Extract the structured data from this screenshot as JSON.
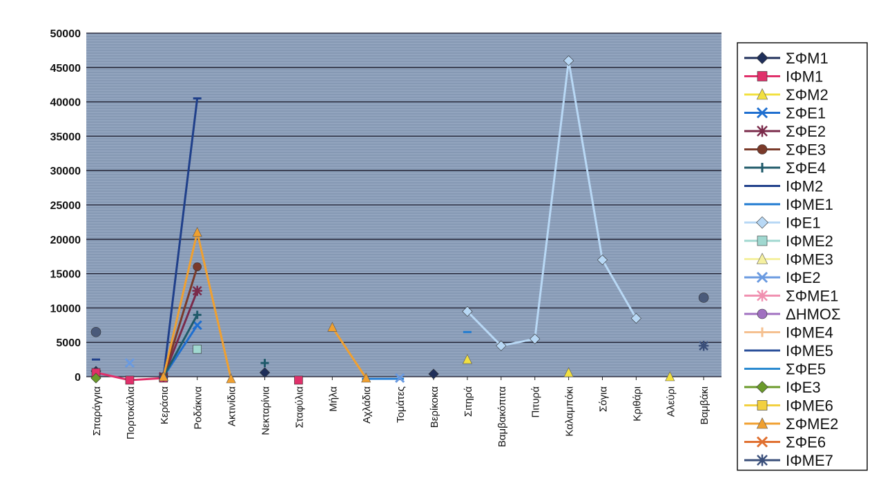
{
  "chart_data": {
    "type": "line",
    "title": "",
    "xlabel": "",
    "ylabel": "",
    "ylim": [
      0,
      50000
    ],
    "yticks": [
      0,
      5000,
      10000,
      15000,
      20000,
      25000,
      30000,
      35000,
      40000,
      45000,
      50000
    ],
    "grid": true,
    "legend_position": "right",
    "categories": [
      "Σπαράγγια",
      "Πορτοκάλια",
      "Κεράσια",
      "Ροδάκινα",
      "Ακτινίδια",
      "Νεκταρίνια",
      "Σταφύλια",
      "Μήλα",
      "Αχλάδια",
      "Τομάτες",
      "Βερίκοκα",
      "Σιτηρά",
      "Βαμβακόπιτα",
      "Πιτυρά",
      "Καλαμπόκι",
      "Σόγια",
      "Κριθάρι",
      "Αλεύρι",
      "Βαμβάκι"
    ],
    "series": [
      {
        "name": "ΣΦΜ1",
        "color": "#1f2f5a",
        "marker": "diamond",
        "values": [
          800,
          null,
          null,
          null,
          null,
          600,
          null,
          null,
          null,
          null,
          400,
          null,
          null,
          null,
          null,
          null,
          null,
          null,
          null
        ]
      },
      {
        "name": "ΙΦΜ1",
        "color": "#e0306a",
        "marker": "square",
        "values": [
          600,
          -500,
          -200,
          null,
          null,
          null,
          -500,
          null,
          null,
          null,
          null,
          null,
          null,
          null,
          null,
          null,
          null,
          null,
          null
        ]
      },
      {
        "name": "ΣΦΜ2",
        "color": "#f2e040",
        "marker": "triangle",
        "values": [
          null,
          null,
          null,
          null,
          null,
          null,
          null,
          null,
          null,
          null,
          null,
          2500,
          null,
          null,
          600,
          null,
          null,
          0,
          null
        ]
      },
      {
        "name": "ΣΦΕ1",
        "color": "#1f6fd0",
        "marker": "x",
        "values": [
          null,
          null,
          0,
          7500,
          null,
          null,
          null,
          null,
          null,
          null,
          null,
          null,
          null,
          null,
          null,
          null,
          null,
          null,
          null
        ]
      },
      {
        "name": "ΣΦΕ2",
        "color": "#7a2a4a",
        "marker": "star",
        "values": [
          null,
          null,
          0,
          12500,
          null,
          null,
          null,
          null,
          null,
          null,
          null,
          null,
          null,
          null,
          null,
          null,
          null,
          null,
          null
        ]
      },
      {
        "name": "ΣΦΕ3",
        "color": "#7a3a2a",
        "marker": "circle",
        "values": [
          null,
          null,
          0,
          16000,
          null,
          null,
          null,
          null,
          null,
          null,
          null,
          null,
          null,
          null,
          null,
          null,
          null,
          null,
          null
        ]
      },
      {
        "name": "ΣΦΕ4",
        "color": "#1f5a6a",
        "marker": "plus",
        "values": [
          null,
          null,
          0,
          9000,
          null,
          2000,
          null,
          null,
          null,
          null,
          null,
          null,
          null,
          null,
          null,
          null,
          null,
          null,
          null
        ]
      },
      {
        "name": "ΙΦΜ2",
        "color": "#1f3f8a",
        "marker": "dash",
        "values": [
          2500,
          null,
          0,
          40500,
          null,
          null,
          null,
          null,
          null,
          null,
          null,
          null,
          null,
          null,
          null,
          null,
          null,
          null,
          null
        ]
      },
      {
        "name": "ΙΦΜΕ1",
        "color": "#1f7ad0",
        "marker": "dash",
        "values": [
          null,
          null,
          null,
          null,
          null,
          null,
          null,
          null,
          -300,
          -300,
          null,
          6500,
          null,
          null,
          null,
          null,
          null,
          null,
          null
        ]
      },
      {
        "name": "ΙΦΕ1",
        "color": "#b8d8f5",
        "marker": "diamond",
        "values": [
          null,
          null,
          null,
          null,
          null,
          null,
          null,
          null,
          null,
          null,
          null,
          9500,
          4500,
          5500,
          46000,
          17000,
          8500,
          null,
          null
        ]
      },
      {
        "name": "ΙΦΜΕ2",
        "color": "#a0d8d0",
        "marker": "square",
        "values": [
          null,
          null,
          null,
          4000,
          null,
          null,
          null,
          null,
          null,
          null,
          null,
          null,
          null,
          null,
          null,
          null,
          null,
          null,
          null
        ]
      },
      {
        "name": "ΙΦΜΕ3",
        "color": "#f5f0a0",
        "marker": "triangle",
        "values": [
          null,
          null,
          null,
          null,
          null,
          null,
          null,
          null,
          null,
          null,
          null,
          null,
          null,
          null,
          null,
          null,
          null,
          null,
          null
        ]
      },
      {
        "name": "ΙΦΕ2",
        "color": "#6a9ae0",
        "marker": "x",
        "values": [
          null,
          2000,
          null,
          null,
          null,
          null,
          null,
          null,
          null,
          -200,
          null,
          null,
          null,
          null,
          null,
          null,
          null,
          null,
          null
        ]
      },
      {
        "name": "ΣΦΜΕ1",
        "color": "#f090b0",
        "marker": "star",
        "values": [
          null,
          null,
          null,
          null,
          null,
          null,
          null,
          null,
          null,
          null,
          null,
          null,
          null,
          null,
          null,
          null,
          null,
          null,
          null
        ]
      },
      {
        "name": "ΔΗΜΟΣ",
        "color": "#a070c0",
        "marker": "circle",
        "values": [
          null,
          null,
          null,
          null,
          null,
          null,
          null,
          null,
          null,
          null,
          null,
          null,
          null,
          null,
          null,
          null,
          null,
          null,
          null
        ]
      },
      {
        "name": "ΙΦΜΕ4",
        "color": "#f5c090",
        "marker": "plus",
        "values": [
          null,
          null,
          null,
          null,
          null,
          null,
          null,
          null,
          null,
          null,
          null,
          null,
          null,
          null,
          null,
          null,
          null,
          null,
          null
        ]
      },
      {
        "name": "ΙΦΜΕ5",
        "color": "#2a4f9a",
        "marker": "dash",
        "values": [
          null,
          null,
          null,
          null,
          null,
          null,
          null,
          null,
          null,
          null,
          null,
          null,
          null,
          null,
          null,
          null,
          null,
          null,
          null
        ]
      },
      {
        "name": "ΣΦΕ5",
        "color": "#2a8ad0",
        "marker": "dash",
        "values": [
          null,
          null,
          null,
          null,
          null,
          null,
          null,
          null,
          null,
          null,
          null,
          null,
          null,
          null,
          null,
          null,
          null,
          null,
          null
        ]
      },
      {
        "name": "ΙΦΕ3",
        "color": "#6a9a2a",
        "marker": "diamond",
        "values": [
          -200,
          null,
          null,
          null,
          null,
          null,
          null,
          null,
          null,
          null,
          null,
          null,
          null,
          null,
          null,
          null,
          null,
          null,
          null
        ]
      },
      {
        "name": "ΙΦΜΕ6",
        "color": "#f2d040",
        "marker": "square",
        "values": [
          null,
          null,
          null,
          null,
          null,
          null,
          null,
          null,
          null,
          null,
          null,
          null,
          null,
          null,
          null,
          null,
          null,
          null,
          null
        ]
      },
      {
        "name": "ΣΦΜΕ2",
        "color": "#f0a030",
        "marker": "triangle",
        "values": [
          null,
          null,
          0,
          21000,
          -300,
          null,
          null,
          7200,
          -200,
          null,
          null,
          null,
          null,
          null,
          null,
          null,
          null,
          null,
          null
        ]
      },
      {
        "name": "ΣΦΕ6",
        "color": "#e07030",
        "marker": "x",
        "values": [
          null,
          null,
          null,
          null,
          null,
          null,
          null,
          null,
          null,
          null,
          null,
          null,
          null,
          null,
          null,
          null,
          null,
          null,
          null
        ]
      },
      {
        "name": "ΙΦΜΕ7",
        "color": "#3a4f7a",
        "marker": "star",
        "values": [
          null,
          null,
          null,
          null,
          null,
          null,
          null,
          null,
          null,
          null,
          null,
          null,
          null,
          null,
          null,
          null,
          null,
          null,
          4500
        ]
      }
    ],
    "extra_points": [
      {
        "category": "Σπαράγγια",
        "value": 6500,
        "color": "#4a5a7a",
        "marker": "circle"
      },
      {
        "category": "Βαμβάκι",
        "value": 11500,
        "color": "#4a5a7a",
        "marker": "circle"
      }
    ],
    "colors": {
      "plot_background": "#8a9cb8",
      "grid_line": "#1a1a2a"
    }
  }
}
